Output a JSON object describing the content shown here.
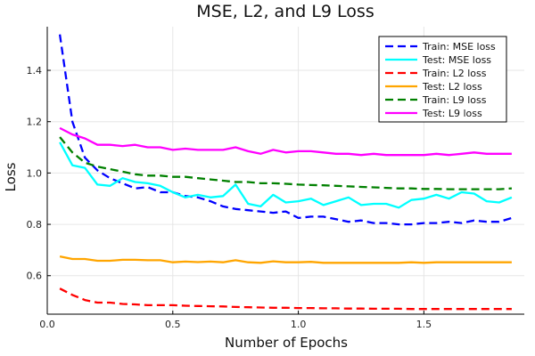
{
  "chart_data": {
    "type": "line",
    "title": "MSE, L2, and L9 Loss",
    "xlabel": "Number of Epochs",
    "ylabel": "Loss",
    "xlim": [
      0,
      1.9
    ],
    "ylim": [
      0.45,
      1.57
    ],
    "x_ticks": [
      0.0,
      0.5,
      1.0,
      1.5
    ],
    "x_tick_labels": [
      "0.0",
      "0.5",
      "1.0",
      "1.5"
    ],
    "y_ticks": [
      0.6,
      0.8,
      1.0,
      1.2,
      1.4
    ],
    "y_tick_labels": [
      "0.6",
      "0.8",
      "1.0",
      "1.2",
      "1.4"
    ],
    "grid": true,
    "legend_position": "top-right",
    "x": [
      0.05,
      0.1,
      0.15,
      0.2,
      0.25,
      0.3,
      0.35,
      0.4,
      0.45,
      0.5,
      0.55,
      0.6,
      0.65,
      0.7,
      0.75,
      0.8,
      0.85,
      0.9,
      0.95,
      1.0,
      1.05,
      1.1,
      1.15,
      1.2,
      1.25,
      1.3,
      1.35,
      1.4,
      1.45,
      1.5,
      1.55,
      1.6,
      1.65,
      1.7,
      1.75,
      1.8,
      1.85
    ],
    "series": [
      {
        "name": "Train: MSE loss",
        "color": "#0000ff",
        "dashed": true,
        "values": [
          1.54,
          1.2,
          1.06,
          1.01,
          0.98,
          0.96,
          0.94,
          0.945,
          0.925,
          0.925,
          0.91,
          0.905,
          0.89,
          0.87,
          0.86,
          0.855,
          0.85,
          0.845,
          0.85,
          0.825,
          0.83,
          0.83,
          0.82,
          0.81,
          0.815,
          0.805,
          0.805,
          0.8,
          0.8,
          0.805,
          0.805,
          0.81,
          0.805,
          0.815,
          0.81,
          0.81,
          0.825
        ]
      },
      {
        "name": "Test: MSE loss",
        "color": "#00ffff",
        "dashed": false,
        "values": [
          1.12,
          1.03,
          1.02,
          0.955,
          0.95,
          0.98,
          0.965,
          0.96,
          0.95,
          0.925,
          0.905,
          0.915,
          0.905,
          0.91,
          0.955,
          0.88,
          0.87,
          0.915,
          0.885,
          0.89,
          0.9,
          0.875,
          0.89,
          0.905,
          0.875,
          0.88,
          0.88,
          0.865,
          0.895,
          0.9,
          0.915,
          0.9,
          0.925,
          0.92,
          0.89,
          0.885,
          0.905
        ]
      },
      {
        "name": "Train: L2 loss",
        "color": "#ff0000",
        "dashed": true,
        "values": [
          0.55,
          0.525,
          0.505,
          0.495,
          0.495,
          0.49,
          0.488,
          0.485,
          0.485,
          0.485,
          0.483,
          0.482,
          0.481,
          0.48,
          0.478,
          0.477,
          0.476,
          0.475,
          0.475,
          0.474,
          0.474,
          0.473,
          0.473,
          0.472,
          0.472,
          0.471,
          0.471,
          0.471,
          0.47,
          0.47,
          0.47,
          0.47,
          0.47,
          0.47,
          0.47,
          0.47,
          0.47
        ]
      },
      {
        "name": "Test: L2 loss",
        "color": "#ffa500",
        "dashed": false,
        "values": [
          0.675,
          0.665,
          0.665,
          0.658,
          0.658,
          0.662,
          0.662,
          0.66,
          0.66,
          0.652,
          0.655,
          0.653,
          0.655,
          0.652,
          0.66,
          0.652,
          0.65,
          0.656,
          0.652,
          0.652,
          0.654,
          0.65,
          0.65,
          0.65,
          0.65,
          0.65,
          0.65,
          0.65,
          0.652,
          0.65,
          0.652,
          0.652,
          0.652,
          0.652,
          0.652,
          0.652,
          0.652
        ]
      },
      {
        "name": "Train: L9 loss",
        "color": "#008000",
        "dashed": true,
        "values": [
          1.14,
          1.08,
          1.04,
          1.025,
          1.015,
          1.005,
          0.995,
          0.99,
          0.99,
          0.985,
          0.985,
          0.98,
          0.975,
          0.97,
          0.965,
          0.965,
          0.96,
          0.96,
          0.958,
          0.955,
          0.953,
          0.952,
          0.95,
          0.948,
          0.946,
          0.944,
          0.942,
          0.94,
          0.94,
          0.938,
          0.938,
          0.937,
          0.937,
          0.937,
          0.937,
          0.937,
          0.94
        ]
      },
      {
        "name": "Test: L9 loss",
        "color": "#ff00ff",
        "dashed": false,
        "values": [
          1.175,
          1.15,
          1.135,
          1.11,
          1.11,
          1.105,
          1.11,
          1.1,
          1.1,
          1.09,
          1.095,
          1.09,
          1.09,
          1.09,
          1.1,
          1.085,
          1.075,
          1.09,
          1.08,
          1.085,
          1.085,
          1.08,
          1.075,
          1.075,
          1.07,
          1.075,
          1.07,
          1.07,
          1.07,
          1.07,
          1.075,
          1.07,
          1.075,
          1.08,
          1.075,
          1.075,
          1.075
        ]
      }
    ]
  }
}
